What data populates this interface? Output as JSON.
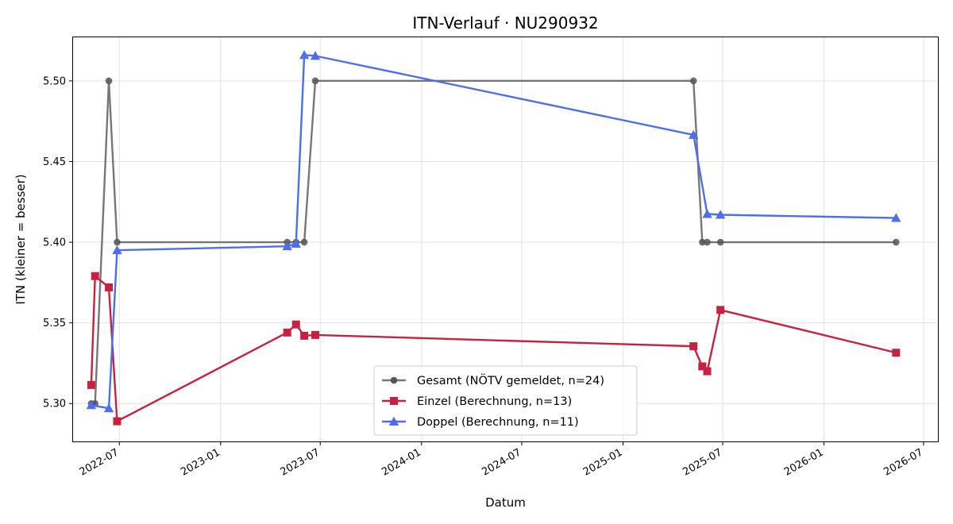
{
  "chart_data": {
    "type": "line",
    "title": "ITN-Verlauf · NU290932",
    "xlabel": "Datum",
    "ylabel": "ITN  (kleiner = besser)",
    "x_ticks": [
      "2022-07",
      "2023-01",
      "2023-07",
      "2024-01",
      "2024-07",
      "2025-01",
      "2025-07",
      "2026-01",
      "2026-07"
    ],
    "y_ticks": [
      "5.30",
      "5.35",
      "5.40",
      "5.45",
      "5.50"
    ],
    "xlim": [
      "2022-04-08",
      "2026-07-27"
    ],
    "ylim": [
      5.2765,
      5.527
    ],
    "grid": true,
    "legend_position": "lower center",
    "series": [
      {
        "name": "Gesamt (NÖTV gemeldet, n=24)",
        "color": "#555555",
        "marker": "circle",
        "x": [
          "2022-05-11",
          "2022-05-18",
          "2022-06-12",
          "2022-06-27",
          "2023-05-02",
          "2023-05-18",
          "2023-06-02",
          "2023-06-22",
          "2025-05-09",
          "2025-05-25",
          "2025-06-03",
          "2025-06-27",
          "2026-05-12"
        ],
        "y": [
          5.3,
          5.3,
          5.5,
          5.4,
          5.4,
          5.4,
          5.4,
          5.5,
          5.5,
          5.4,
          5.4,
          5.4,
          5.4
        ]
      },
      {
        "name": "Einzel (Berechnung, n=13)",
        "color": "#c62240",
        "marker": "square",
        "x": [
          "2022-05-11",
          "2022-05-18",
          "2022-06-12",
          "2022-06-27",
          "2023-05-02",
          "2023-05-18",
          "2023-06-02",
          "2023-06-22",
          "2025-05-09",
          "2025-05-25",
          "2025-06-03",
          "2025-06-27",
          "2026-05-12"
        ],
        "y": [
          5.3115,
          5.379,
          5.372,
          5.289,
          5.344,
          5.349,
          5.342,
          5.3425,
          5.3355,
          5.323,
          5.32,
          5.358,
          5.3315
        ]
      },
      {
        "name": "Doppel (Berechnung, n=11)",
        "color": "#4f6eea",
        "marker": "triangle",
        "x": [
          "2022-05-11",
          "2022-06-12",
          "2022-06-27",
          "2023-05-02",
          "2023-05-18",
          "2023-06-02",
          "2023-06-22",
          "2025-05-09",
          "2025-06-03",
          "2025-06-27",
          "2026-05-12"
        ],
        "y": [
          5.299,
          5.297,
          5.395,
          5.3975,
          5.399,
          5.516,
          5.5155,
          5.4665,
          5.4175,
          5.417,
          5.415
        ]
      }
    ]
  }
}
